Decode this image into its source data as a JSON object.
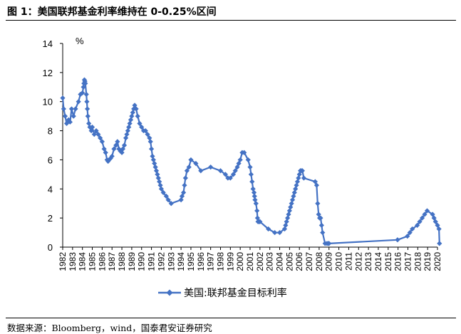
{
  "figure": {
    "title": "图 1：美国联邦基金利率维持在 0-0.25%区间",
    "source": "数据来源：Bloomberg，wind，国泰君安证券研究"
  },
  "chart_data": {
    "type": "line",
    "title": "图 1：美国联邦基金利率维持在 0-0.25%区间",
    "ylabel": "%",
    "xlabel": "",
    "ylim": [
      0,
      14
    ],
    "yticks": [
      0,
      2,
      4,
      6,
      8,
      10,
      12,
      14
    ],
    "xlim": [
      1982,
      2020
    ],
    "xticks": [
      "1982",
      "1983",
      "1984",
      "1985",
      "1986",
      "1987",
      "1988",
      "1989",
      "1990",
      "1991",
      "1992",
      "1993",
      "1994",
      "1995",
      "1996",
      "1997",
      "1998",
      "1999",
      "2000",
      "2001",
      "2002",
      "2003",
      "2004",
      "2005",
      "2006",
      "2007",
      "2008",
      "2009",
      "2010",
      "2011",
      "2012",
      "2013",
      "2014",
      "2015",
      "2016",
      "2017",
      "2018",
      "2019",
      "2020"
    ],
    "legend": "bottom",
    "color": "#4472C4",
    "series": [
      {
        "name": "美国:联邦基金目标利率",
        "x": [
          1982.0,
          1982.1,
          1982.25,
          1982.4,
          1982.6,
          1982.75,
          1982.9,
          1983.1,
          1983.3,
          1983.6,
          1983.8,
          1984.0,
          1984.1,
          1984.15,
          1984.2,
          1984.25,
          1984.3,
          1984.4,
          1984.45,
          1984.5,
          1984.55,
          1984.65,
          1984.75,
          1984.9,
          1985.0,
          1985.2,
          1985.4,
          1985.6,
          1985.8,
          1986.0,
          1986.2,
          1986.35,
          1986.5,
          1986.6,
          1986.7,
          1986.85,
          1987.0,
          1987.2,
          1987.4,
          1987.55,
          1987.7,
          1987.85,
          1988.0,
          1988.1,
          1988.25,
          1988.4,
          1988.5,
          1988.6,
          1988.7,
          1988.8,
          1988.9,
          1989.0,
          1989.1,
          1989.2,
          1989.3,
          1989.45,
          1989.6,
          1989.8,
          1990.0,
          1990.2,
          1990.4,
          1990.6,
          1990.8,
          1990.9,
          1991.0,
          1991.1,
          1991.2,
          1991.3,
          1991.4,
          1991.5,
          1991.6,
          1991.7,
          1991.8,
          1991.9,
          1992.0,
          1992.2,
          1992.5,
          1992.7,
          1993.0,
          1994.0,
          1994.1,
          1994.25,
          1994.35,
          1994.45,
          1994.6,
          1994.8,
          1995.0,
          1995.5,
          1996.0,
          1997.0,
          1998.0,
          1998.5,
          1998.75,
          1999.0,
          1999.3,
          1999.5,
          1999.7,
          1999.85,
          2000.0,
          2000.2,
          2000.4,
          2000.8,
          2001.0,
          2001.1,
          2001.2,
          2001.3,
          2001.4,
          2001.45,
          2001.5,
          2001.6,
          2001.7,
          2001.75,
          2001.8,
          2001.9,
          2002.0,
          2002.85,
          2003.5,
          2004.0,
          2004.5,
          2004.6,
          2004.7,
          2004.8,
          2004.9,
          2005.0,
          2005.1,
          2005.2,
          2005.3,
          2005.4,
          2005.5,
          2005.6,
          2005.7,
          2005.8,
          2005.9,
          2006.0,
          2006.1,
          2006.2,
          2006.3,
          2006.45,
          2007.6,
          2007.75,
          2007.85,
          2007.95,
          2008.05,
          2008.15,
          2008.25,
          2008.35,
          2008.6,
          2008.8,
          2008.95,
          2009.0,
          2015.95,
          2016.95,
          2017.2,
          2017.45,
          2017.95,
          2018.2,
          2018.45,
          2018.7,
          2018.95,
          2019.5,
          2019.65,
          2019.8,
          2020.0,
          2020.15,
          2020.2
        ],
        "y": [
          10.25,
          9.5,
          9.0,
          8.5,
          8.75,
          8.6,
          9.5,
          9.0,
          9.5,
          10.0,
          10.5,
          10.6,
          11.0,
          11.25,
          11.5,
          11.4,
          11.25,
          10.5,
          10.0,
          9.5,
          9.0,
          8.5,
          8.25,
          8.0,
          8.25,
          7.75,
          8.0,
          7.75,
          7.5,
          7.25,
          6.75,
          6.5,
          6.0,
          5.9,
          6.0,
          6.1,
          6.25,
          6.75,
          7.0,
          7.25,
          6.75,
          6.6,
          6.5,
          6.75,
          7.0,
          7.5,
          7.75,
          8.0,
          8.25,
          8.5,
          8.75,
          9.0,
          9.25,
          9.5,
          9.75,
          9.5,
          9.0,
          8.5,
          8.25,
          8.0,
          8.0,
          7.75,
          7.5,
          7.25,
          6.75,
          6.25,
          6.0,
          5.75,
          5.5,
          5.25,
          5.0,
          4.75,
          4.5,
          4.25,
          4.0,
          3.75,
          3.5,
          3.25,
          3.0,
          3.25,
          3.5,
          3.75,
          4.25,
          4.75,
          5.25,
          5.5,
          6.0,
          5.75,
          5.25,
          5.5,
          5.25,
          5.0,
          4.75,
          4.75,
          5.0,
          5.25,
          5.5,
          5.75,
          6.0,
          6.5,
          6.5,
          6.0,
          5.5,
          5.0,
          4.5,
          4.0,
          3.75,
          3.5,
          3.25,
          3.0,
          2.5,
          2.0,
          1.75,
          1.75,
          1.75,
          1.25,
          1.0,
          1.0,
          1.25,
          1.5,
          1.75,
          2.0,
          2.25,
          2.5,
          2.75,
          3.0,
          3.25,
          3.5,
          3.75,
          4.0,
          4.25,
          4.5,
          4.75,
          5.0,
          5.25,
          5.25,
          5.25,
          4.75,
          4.5,
          4.25,
          3.0,
          2.25,
          2.0,
          2.0,
          1.5,
          1.0,
          0.25,
          0.25,
          0.25,
          0.25,
          0.5,
          0.75,
          1.0,
          1.25,
          1.5,
          1.75,
          2.0,
          2.25,
          2.5,
          2.25,
          2.0,
          1.75,
          1.5,
          1.25,
          0.25
        ]
      }
    ]
  }
}
